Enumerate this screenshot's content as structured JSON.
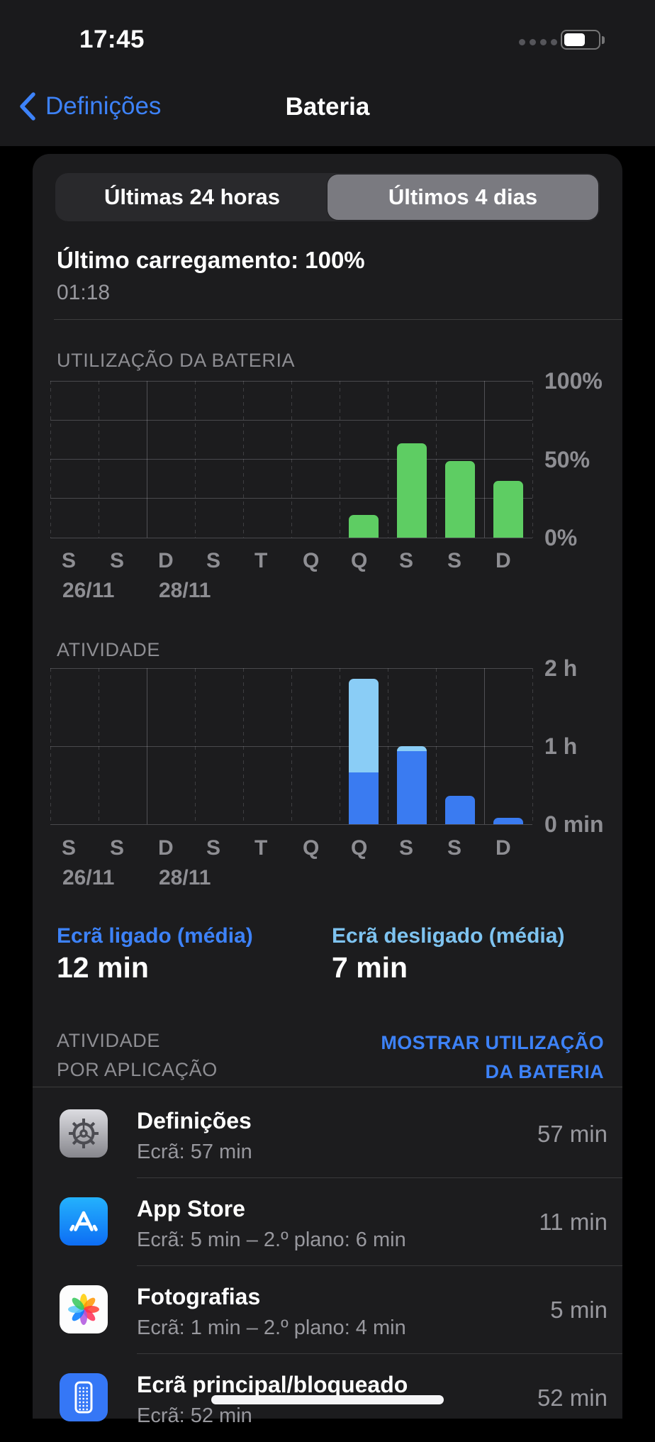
{
  "status_bar": {
    "time": "17:45",
    "battery_percent_shown": 55
  },
  "nav": {
    "back_label": "Definições",
    "title": "Bateria"
  },
  "segmented": {
    "options": [
      "Últimas 24 horas",
      "Últimos 4 dias"
    ],
    "selected": "Últimos 4 dias"
  },
  "last_charge": {
    "title": "Último carregamento: 100%",
    "time": "01:18"
  },
  "chart_data": [
    {
      "type": "bar",
      "title": "UTILIZAÇÃO DA BATERIA",
      "categories": [
        "S",
        "S",
        "D",
        "S",
        "T",
        "Q",
        "Q",
        "S",
        "S",
        "D"
      ],
      "date_labels": [
        {
          "text": "26/11",
          "col": 0
        },
        {
          "text": "28/11",
          "col": 2
        }
      ],
      "values": [
        0,
        0,
        0,
        0,
        0,
        0,
        14.5,
        60,
        49,
        36
      ],
      "unit": "%",
      "ylim": [
        0,
        100
      ],
      "y_ticks": [
        {
          "label": "100%",
          "value": 100
        },
        {
          "label": "50%",
          "value": 50
        },
        {
          "label": "0%",
          "value": 0
        }
      ],
      "h_gridlines": [
        0,
        25,
        50,
        75,
        100
      ],
      "solid_vlines": [
        2,
        9
      ],
      "bar_color": "#5ecd63",
      "xlabel": "",
      "ylabel": "",
      "legend_position": "none"
    },
    {
      "type": "stacked-bar",
      "title": "ATIVIDADE",
      "categories": [
        "S",
        "S",
        "D",
        "S",
        "T",
        "Q",
        "Q",
        "S",
        "S",
        "D"
      ],
      "date_labels": [
        {
          "text": "26/11",
          "col": 0
        },
        {
          "text": "28/11",
          "col": 2
        }
      ],
      "series": [
        {
          "name": "screen-on (min)",
          "color": "#3a7bf1",
          "values": [
            0,
            0,
            0,
            0,
            0,
            0,
            40,
            56,
            22,
            5
          ]
        },
        {
          "name": "screen-off (min)",
          "color": "#8acdf6",
          "values": [
            0,
            0,
            0,
            0,
            0,
            0,
            72,
            4,
            0,
            0
          ]
        }
      ],
      "unit": "min",
      "ylim": [
        0,
        120
      ],
      "y_ticks": [
        {
          "label": "2 h",
          "value": 120
        },
        {
          "label": "1 h",
          "value": 60
        },
        {
          "label": "0 min",
          "value": 0
        }
      ],
      "h_gridlines": [
        0,
        60,
        120
      ],
      "solid_vlines": [
        2,
        9
      ],
      "xlabel": "",
      "ylabel": "",
      "legend_position": "none"
    }
  ],
  "averages": {
    "screen_on_label": "Ecrã ligado (média)",
    "screen_on_value": "12 min",
    "screen_off_label": "Ecrã desligado (média)",
    "screen_off_value": "7 min"
  },
  "apps_section": {
    "header_left_line1": "ATIVIDADE",
    "header_left_line2": "POR APLICAÇÃO",
    "header_right_line1": "MOSTRAR UTILIZAÇÃO",
    "header_right_line2": "DA BATERIA"
  },
  "apps": [
    {
      "name": "Definições",
      "detail": "Ecrã: 57 min",
      "value": "57 min",
      "icon": "settings-gear"
    },
    {
      "name": "App Store",
      "detail": "Ecrã: 5 min – 2.º plano: 6 min",
      "value": "11 min",
      "icon": "app-store"
    },
    {
      "name": "Fotografias",
      "detail": "Ecrã: 1 min – 2.º plano: 4 min",
      "value": "5 min",
      "icon": "photos-flower"
    },
    {
      "name": "Ecrã principal/bloqueado",
      "detail": "Ecrã: 52 min",
      "value": "52 min",
      "icon": "home-lock-screen"
    }
  ],
  "colors": {
    "accent_blue": "#3d82f8",
    "light_blue": "#8acdf6",
    "activity_blue": "#3a7bf1",
    "battery_green": "#5ecd63",
    "card_bg": "#1c1c1e",
    "secondary_text": "#98989e",
    "section_text": "#8e8e93",
    "selected_segment": "#7a7a80"
  }
}
